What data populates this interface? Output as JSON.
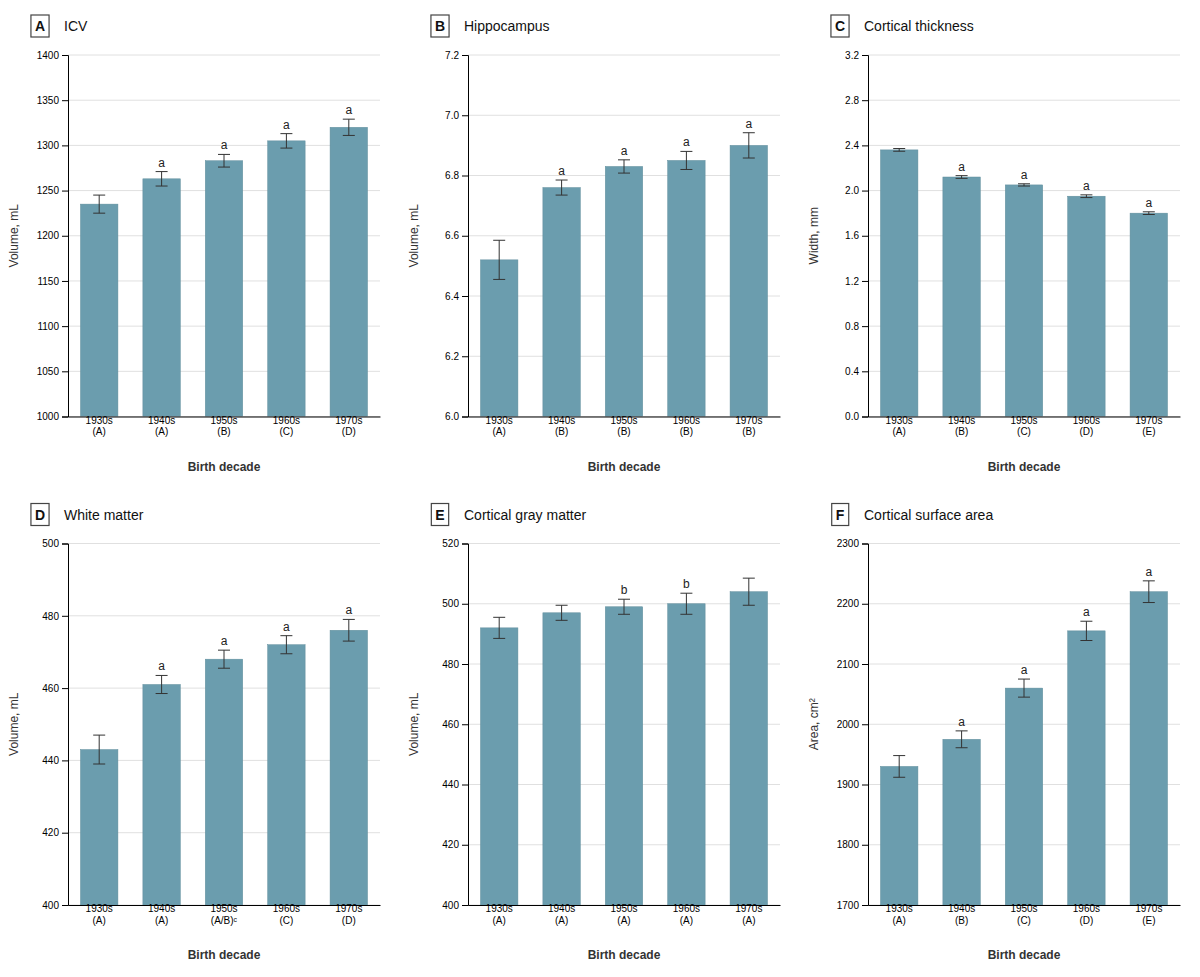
{
  "chart_data": [
    {
      "type": "bar",
      "panel_label": "A",
      "title": "ICV",
      "ylabel": "Volume, mL",
      "xlabel": "Birth decade",
      "categories": [
        "1930s\n(A)",
        "1940s\n(A)",
        "1950s\n(B)",
        "1960s\n(C)",
        "1970s\n(D)"
      ],
      "values": [
        1235,
        1263,
        1283,
        1305,
        1320
      ],
      "errors": [
        10,
        8,
        7,
        8,
        9
      ],
      "significance_labels": [
        null,
        "a",
        "a",
        "a",
        "a"
      ],
      "color": "#6b9dae",
      "ylim": [
        1000,
        1400
      ],
      "yticks": [
        1000,
        1050,
        1100,
        1150,
        1200,
        1250,
        1300,
        1350,
        1400
      ],
      "grid": true
    },
    {
      "type": "bar",
      "panel_label": "B",
      "title": "Hippocampus",
      "ylabel": "Volume, mL",
      "xlabel": "Birth decade",
      "categories": [
        "1930s\n(A)",
        "1940s\n(B)",
        "1950s\n(B)",
        "1960s\n(B)",
        "1970s\n(B)"
      ],
      "values": [
        6.52,
        6.76,
        6.83,
        6.85,
        6.9
      ],
      "errors": [
        0.065,
        0.025,
        0.022,
        0.03,
        0.042
      ],
      "significance_labels": [
        null,
        "a",
        "a",
        "a",
        "a"
      ],
      "color": "#6b9dae",
      "ylim": [
        6.0,
        7.2
      ],
      "yticks": [
        {
          "value": 6.0,
          "label": "6.0"
        },
        6.2,
        6.4,
        6.6,
        6.8,
        {
          "value": 7.0,
          "label": "7.0"
        },
        7.2
      ],
      "grid": true
    },
    {
      "type": "bar",
      "panel_label": "C",
      "title": "Cortical thickness",
      "ylabel": "Width, mm",
      "xlabel": "Birth decade",
      "categories": [
        "1930s\n(A)",
        "1940s\n(B)",
        "1950s\n(C)",
        "1960s\n(D)",
        "1970s\n(E)"
      ],
      "values": [
        2.36,
        2.12,
        2.05,
        1.95,
        1.8
      ],
      "errors": [
        0.012,
        0.012,
        0.01,
        0.012,
        0.012
      ],
      "significance_labels": [
        null,
        "a",
        "a",
        "a",
        "a"
      ],
      "color": "#6b9dae",
      "ylim": [
        0,
        3.2
      ],
      "yticks": [
        {
          "value": 0,
          "label": "0.0"
        },
        0.4,
        0.8,
        1.2,
        1.6,
        {
          "value": 2.0,
          "label": "2.0"
        },
        2.4,
        2.8,
        3.2
      ],
      "grid": true
    },
    {
      "type": "bar",
      "panel_label": "D",
      "title": "White matter",
      "ylabel": "Volume, mL",
      "xlabel": "Birth decade",
      "categories": [
        "1930s\n(A)",
        "1940s\n(A)",
        "1950s\n(A/B)ᶜ",
        "1960s\n(C)",
        "1970s\n(D)"
      ],
      "values": [
        443,
        461,
        468,
        472,
        476
      ],
      "errors": [
        4.0,
        2.5,
        2.5,
        2.5,
        3.0
      ],
      "significance_labels": [
        null,
        "a",
        "a",
        "a",
        "a"
      ],
      "color": "#6b9dae",
      "ylim": [
        400,
        500
      ],
      "yticks": [
        400,
        420,
        440,
        460,
        480,
        500
      ],
      "grid": true
    },
    {
      "type": "bar",
      "panel_label": "E",
      "title": "Cortical gray matter",
      "ylabel": "Volume, mL",
      "xlabel": "Birth decade",
      "categories": [
        "1930s\n(A)",
        "1940s\n(A)",
        "1950s\n(A)",
        "1960s\n(A)",
        "1970s\n(A)"
      ],
      "values": [
        492,
        497,
        499,
        500,
        504
      ],
      "errors": [
        3.5,
        2.5,
        2.5,
        3.5,
        4.5
      ],
      "significance_labels": [
        null,
        null,
        "b",
        "b",
        null
      ],
      "color": "#6b9dae",
      "ylim": [
        400,
        520
      ],
      "yticks": [
        400,
        420,
        440,
        460,
        480,
        500,
        520
      ],
      "grid": true
    },
    {
      "type": "bar",
      "panel_label": "F",
      "title": "Cortical surface area",
      "ylabel": "Area, cm²",
      "xlabel": "Birth decade",
      "categories": [
        "1930s\n(A)",
        "1940s\n(B)",
        "1950s\n(C)",
        "1960s\n(D)",
        "1970s\n(E)"
      ],
      "values": [
        1930,
        1975,
        2060,
        2155,
        2220
      ],
      "errors": [
        18,
        14,
        15,
        16,
        18
      ],
      "significance_labels": [
        null,
        "a",
        "a",
        "a",
        "a"
      ],
      "color": "#6b9dae",
      "ylim": [
        1700,
        2300
      ],
      "yticks": [
        1700,
        1800,
        1900,
        2000,
        2100,
        2200,
        2300
      ],
      "grid": true
    }
  ]
}
